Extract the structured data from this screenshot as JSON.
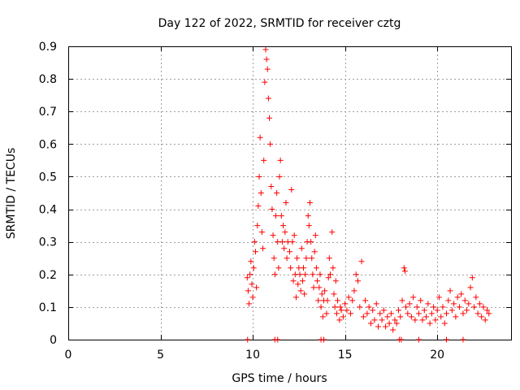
{
  "chart_data": {
    "type": "scatter",
    "title": "Day 122 of 2022, SRMTID for receiver cztg",
    "xlabel": "GPS time / hours",
    "ylabel": "SRMTID / TECUs",
    "xlim": [
      0,
      24
    ],
    "ylim": [
      0,
      0.9
    ],
    "x_ticks": [
      0,
      5,
      10,
      15,
      20
    ],
    "x_tick_labels": [
      "0",
      "5",
      "10",
      "15",
      "20"
    ],
    "y_ticks": [
      0,
      0.1,
      0.2,
      0.3,
      0.4,
      0.5,
      0.6,
      0.7,
      0.8,
      0.9
    ],
    "y_tick_labels": [
      "0",
      "0.1",
      "0.2",
      "0.3",
      "0.4",
      "0.5",
      "0.6",
      "0.7",
      "0.8",
      "0.9"
    ],
    "grid": true,
    "marker": "plus",
    "color": "#ff0000",
    "series": [
      {
        "name": "SRMTID",
        "points": [
          [
            9.7,
            0.19
          ],
          [
            9.75,
            0.15
          ],
          [
            9.8,
            0.11
          ],
          [
            9.85,
            0.2
          ],
          [
            9.9,
            0.24
          ],
          [
            9.95,
            0.17
          ],
          [
            10.0,
            0.13
          ],
          [
            10.05,
            0.22
          ],
          [
            10.1,
            0.3
          ],
          [
            10.15,
            0.27
          ],
          [
            10.2,
            0.16
          ],
          [
            10.25,
            0.35
          ],
          [
            10.3,
            0.41
          ],
          [
            10.35,
            0.5
          ],
          [
            10.4,
            0.62
          ],
          [
            10.45,
            0.45
          ],
          [
            10.5,
            0.33
          ],
          [
            10.55,
            0.28
          ],
          [
            10.6,
            0.55
          ],
          [
            10.65,
            0.79
          ],
          [
            10.7,
            0.89
          ],
          [
            10.75,
            0.86
          ],
          [
            10.8,
            0.83
          ],
          [
            10.85,
            0.74
          ],
          [
            10.9,
            0.68
          ],
          [
            10.95,
            0.6
          ],
          [
            11.0,
            0.47
          ],
          [
            11.05,
            0.4
          ],
          [
            11.1,
            0.32
          ],
          [
            11.15,
            0.25
          ],
          [
            11.2,
            0.2
          ],
          [
            11.25,
            0.38
          ],
          [
            11.3,
            0.45
          ],
          [
            11.35,
            0.3
          ],
          [
            11.4,
            0.22
          ],
          [
            11.45,
            0.5
          ],
          [
            11.5,
            0.55
          ],
          [
            11.55,
            0.38
          ],
          [
            11.6,
            0.3
          ],
          [
            11.65,
            0.35
          ],
          [
            11.7,
            0.28
          ],
          [
            11.75,
            0.33
          ],
          [
            11.8,
            0.42
          ],
          [
            11.85,
            0.25
          ],
          [
            11.9,
            0.3
          ],
          [
            12.0,
            0.27
          ],
          [
            12.05,
            0.22
          ],
          [
            12.1,
            0.46
          ],
          [
            12.15,
            0.3
          ],
          [
            12.2,
            0.18
          ],
          [
            12.25,
            0.32
          ],
          [
            12.3,
            0.2
          ],
          [
            12.35,
            0.13
          ],
          [
            12.4,
            0.25
          ],
          [
            12.45,
            0.17
          ],
          [
            12.5,
            0.22
          ],
          [
            12.55,
            0.2
          ],
          [
            12.6,
            0.15
          ],
          [
            12.65,
            0.28
          ],
          [
            12.7,
            0.18
          ],
          [
            12.75,
            0.22
          ],
          [
            12.8,
            0.14
          ],
          [
            12.85,
            0.2
          ],
          [
            12.9,
            0.25
          ],
          [
            12.95,
            0.3
          ],
          [
            13.0,
            0.38
          ],
          [
            13.05,
            0.35
          ],
          [
            13.1,
            0.42
          ],
          [
            13.15,
            0.3
          ],
          [
            13.2,
            0.25
          ],
          [
            13.25,
            0.2
          ],
          [
            13.3,
            0.16
          ],
          [
            13.35,
            0.27
          ],
          [
            13.4,
            0.32
          ],
          [
            13.45,
            0.22
          ],
          [
            13.5,
            0.18
          ],
          [
            13.55,
            0.12
          ],
          [
            13.6,
            0.16
          ],
          [
            13.65,
            0.2
          ],
          [
            13.7,
            0.1
          ],
          [
            13.75,
            0.14
          ],
          [
            13.8,
            0.07
          ],
          [
            13.85,
            0.12
          ],
          [
            13.9,
            0.15
          ],
          [
            14.0,
            0.08
          ],
          [
            14.05,
            0.12
          ],
          [
            14.1,
            0.19
          ],
          [
            14.15,
            0.25
          ],
          [
            14.2,
            0.2
          ],
          [
            14.3,
            0.33
          ],
          [
            14.35,
            0.22
          ],
          [
            14.4,
            0.14
          ],
          [
            14.45,
            0.1
          ],
          [
            14.5,
            0.18
          ],
          [
            14.55,
            0.08
          ],
          [
            14.6,
            0.12
          ],
          [
            14.7,
            0.06
          ],
          [
            14.75,
            0.1
          ],
          [
            14.8,
            0.09
          ],
          [
            14.9,
            0.07
          ],
          [
            15.0,
            0.11
          ],
          [
            15.1,
            0.09
          ],
          [
            15.2,
            0.13
          ],
          [
            15.3,
            0.08
          ],
          [
            15.4,
            0.12
          ],
          [
            15.5,
            0.15
          ],
          [
            15.6,
            0.2
          ],
          [
            15.7,
            0.18
          ],
          [
            15.8,
            0.1
          ],
          [
            15.9,
            0.24
          ],
          [
            16.0,
            0.07
          ],
          [
            16.1,
            0.12
          ],
          [
            16.2,
            0.08
          ],
          [
            16.3,
            0.1
          ],
          [
            16.4,
            0.05
          ],
          [
            16.5,
            0.09
          ],
          [
            16.6,
            0.06
          ],
          [
            16.7,
            0.11
          ],
          [
            16.8,
            0.04
          ],
          [
            16.9,
            0.08
          ],
          [
            17.0,
            0.06
          ],
          [
            17.1,
            0.09
          ],
          [
            17.2,
            0.04
          ],
          [
            17.3,
            0.07
          ],
          [
            17.4,
            0.05
          ],
          [
            17.5,
            0.08
          ],
          [
            17.6,
            0.03
          ],
          [
            17.7,
            0.06
          ],
          [
            17.8,
            0.05
          ],
          [
            17.9,
            0.09
          ],
          [
            18.0,
            0.07
          ],
          [
            18.1,
            0.12
          ],
          [
            18.2,
            0.22
          ],
          [
            18.25,
            0.21
          ],
          [
            18.3,
            0.1
          ],
          [
            18.4,
            0.08
          ],
          [
            18.5,
            0.11
          ],
          [
            18.6,
            0.07
          ],
          [
            18.7,
            0.13
          ],
          [
            18.8,
            0.06
          ],
          [
            18.9,
            0.1
          ],
          [
            19.0,
            0.08
          ],
          [
            19.1,
            0.12
          ],
          [
            19.2,
            0.06
          ],
          [
            19.3,
            0.09
          ],
          [
            19.4,
            0.07
          ],
          [
            19.5,
            0.11
          ],
          [
            19.6,
            0.05
          ],
          [
            19.7,
            0.08
          ],
          [
            19.8,
            0.1
          ],
          [
            19.9,
            0.06
          ],
          [
            20.0,
            0.09
          ],
          [
            20.1,
            0.13
          ],
          [
            20.2,
            0.07
          ],
          [
            20.3,
            0.1
          ],
          [
            20.4,
            0.05
          ],
          [
            20.5,
            0.08
          ],
          [
            20.6,
            0.12
          ],
          [
            20.7,
            0.15
          ],
          [
            20.8,
            0.09
          ],
          [
            20.9,
            0.11
          ],
          [
            21.0,
            0.07
          ],
          [
            21.1,
            0.13
          ],
          [
            21.2,
            0.1
          ],
          [
            21.3,
            0.14
          ],
          [
            21.4,
            0.08
          ],
          [
            21.5,
            0.12
          ],
          [
            21.6,
            0.09
          ],
          [
            21.7,
            0.11
          ],
          [
            21.8,
            0.16
          ],
          [
            21.9,
            0.19
          ],
          [
            22.0,
            0.1
          ],
          [
            22.1,
            0.13
          ],
          [
            22.2,
            0.08
          ],
          [
            22.3,
            0.11
          ],
          [
            22.4,
            0.07
          ],
          [
            22.5,
            0.1
          ],
          [
            22.6,
            0.06
          ],
          [
            22.7,
            0.09
          ],
          [
            22.8,
            0.08
          ],
          [
            9.72,
            0.0
          ],
          [
            11.2,
            0.0
          ],
          [
            11.35,
            0.0
          ],
          [
            13.7,
            0.0
          ],
          [
            13.85,
            0.0
          ],
          [
            17.95,
            0.0
          ],
          [
            18.05,
            0.0
          ],
          [
            19.0,
            0.0
          ],
          [
            20.5,
            0.0
          ],
          [
            21.4,
            0.0
          ]
        ]
      }
    ]
  }
}
